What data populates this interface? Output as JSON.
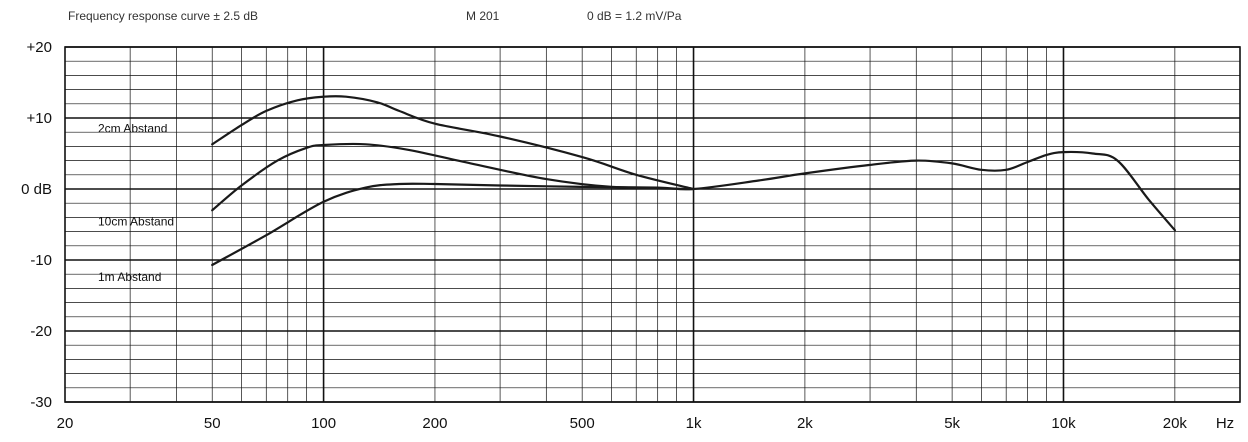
{
  "header": {
    "title": "Frequency response curve ± 2.5 dB",
    "model": "M 201",
    "reference": "0 dB = 1.2 mV/Pa"
  },
  "chart_data": {
    "type": "line",
    "xscale": "log",
    "xlim": [
      20,
      30000
    ],
    "ylim": [
      -30,
      20
    ],
    "x_ticks": [
      {
        "v": 20,
        "label": "20"
      },
      {
        "v": 50,
        "label": "50"
      },
      {
        "v": 100,
        "label": "100"
      },
      {
        "v": 200,
        "label": "200"
      },
      {
        "v": 500,
        "label": "500"
      },
      {
        "v": 1000,
        "label": "1k"
      },
      {
        "v": 2000,
        "label": "2k"
      },
      {
        "v": 5000,
        "label": "5k"
      },
      {
        "v": 10000,
        "label": "10k"
      },
      {
        "v": 20000,
        "label": "20k"
      }
    ],
    "x_unit": "Hz",
    "y_ticks": [
      {
        "v": 20,
        "label": "+20"
      },
      {
        "v": 10,
        "label": "+10"
      },
      {
        "v": 0,
        "label": "0 dB"
      },
      {
        "v": -10,
        "label": "-10"
      },
      {
        "v": -20,
        "label": "-20"
      },
      {
        "v": -30,
        "label": "-30"
      }
    ],
    "grid": true,
    "series": [
      {
        "name": "2cm Abstand",
        "color": "#1a1a1a",
        "points": [
          [
            50,
            6.3
          ],
          [
            60,
            9.0
          ],
          [
            70,
            11.0
          ],
          [
            85,
            12.5
          ],
          [
            100,
            13.0
          ],
          [
            115,
            13.0
          ],
          [
            140,
            12.2
          ],
          [
            160,
            11.0
          ],
          [
            200,
            9.2
          ],
          [
            300,
            7.4
          ],
          [
            500,
            4.5
          ],
          [
            700,
            2.0
          ],
          [
            1000,
            0
          ]
        ]
      },
      {
        "name": "10cm Abstand",
        "color": "#1a1a1a",
        "points": [
          [
            50,
            -3.0
          ],
          [
            60,
            0.5
          ],
          [
            75,
            4.0
          ],
          [
            90,
            5.8
          ],
          [
            100,
            6.2
          ],
          [
            130,
            6.3
          ],
          [
            170,
            5.5
          ],
          [
            250,
            3.6
          ],
          [
            400,
            1.4
          ],
          [
            600,
            0.3
          ],
          [
            1000,
            0
          ]
        ]
      },
      {
        "name": "1m Abstand",
        "color": "#1a1a1a",
        "points": [
          [
            50,
            -10.7
          ],
          [
            70,
            -6.5
          ],
          [
            100,
            -1.8
          ],
          [
            130,
            0.2
          ],
          [
            160,
            0.7
          ],
          [
            200,
            0.7
          ],
          [
            300,
            0.5
          ],
          [
            500,
            0.3
          ],
          [
            800,
            0.2
          ],
          [
            1000,
            0
          ],
          [
            1500,
            1.2
          ],
          [
            2000,
            2.2
          ],
          [
            3000,
            3.4
          ],
          [
            4000,
            4.0
          ],
          [
            5000,
            3.6
          ],
          [
            6000,
            2.7
          ],
          [
            7000,
            2.7
          ],
          [
            8000,
            3.8
          ],
          [
            9000,
            4.8
          ],
          [
            10000,
            5.2
          ],
          [
            12000,
            5.0
          ],
          [
            14000,
            4.0
          ],
          [
            17000,
            -1.5
          ],
          [
            20000,
            -5.8
          ]
        ]
      }
    ]
  }
}
